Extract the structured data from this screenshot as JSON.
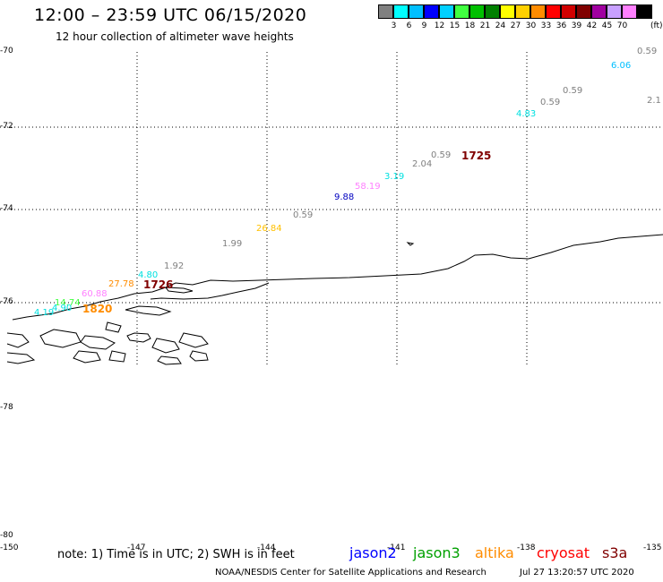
{
  "header": {
    "title": "12:00 – 23:59 UTC 06/15/2020",
    "subtitle": "12 hour collection of altimeter wave heights"
  },
  "color_scale": {
    "unit": "(ft)",
    "swatches": [
      {
        "label": "",
        "color": "#808080"
      },
      {
        "label": "3",
        "color": "#00ffff"
      },
      {
        "label": "6",
        "color": "#00bfff"
      },
      {
        "label": "9",
        "color": "#0000ff"
      },
      {
        "label": "12",
        "color": "#00d0ff"
      },
      {
        "label": "15",
        "color": "#40ff40"
      },
      {
        "label": "18",
        "color": "#00c000"
      },
      {
        "label": "21",
        "color": "#008000"
      },
      {
        "label": "24",
        "color": "#ffff00"
      },
      {
        "label": "27",
        "color": "#ffd000"
      },
      {
        "label": "30",
        "color": "#ff8c00"
      },
      {
        "label": "33",
        "color": "#ff0000"
      },
      {
        "label": "36",
        "color": "#d00000"
      },
      {
        "label": "39",
        "color": "#800000"
      },
      {
        "label": "42",
        "color": "#a000a0"
      },
      {
        "label": "45",
        "color": "#c8a0ff"
      },
      {
        "label": "70",
        "color": "#ff80ff"
      },
      {
        "label": "",
        "color": "#000000"
      }
    ]
  },
  "axes": {
    "latitudes": [
      "-70",
      "-72",
      "-74",
      "-76",
      "-78",
      "-80"
    ],
    "longitudes": [
      "-150",
      "-147",
      "-144",
      "-141",
      "-138",
      "-135"
    ]
  },
  "observations": [
    {
      "value": "0.59",
      "color": "#808080"
    },
    {
      "value": "6.06",
      "color": "#00bfff"
    },
    {
      "value": "0.59",
      "color": "#808080"
    },
    {
      "value": "0.59",
      "color": "#808080"
    },
    {
      "value": "2.1",
      "color": "#808080"
    },
    {
      "value": "4.83",
      "color": "#00e0e0"
    },
    {
      "value": "0.59",
      "color": "#808080"
    },
    {
      "value": "2.04",
      "color": "#808080"
    },
    {
      "value": "1725",
      "color": "#800000",
      "big": true
    },
    {
      "value": "3.19",
      "color": "#00e0e0"
    },
    {
      "value": "58.19",
      "color": "#ff80ff"
    },
    {
      "value": "9.88",
      "color": "#0000c0"
    },
    {
      "value": "0.59",
      "color": "#808080"
    },
    {
      "value": "26.84",
      "color": "#ffc000"
    },
    {
      "value": "1.99",
      "color": "#808080"
    },
    {
      "value": "1.92",
      "color": "#808080"
    },
    {
      "value": "4.80",
      "color": "#00e0e0"
    },
    {
      "value": "27.78",
      "color": "#ff8c00"
    },
    {
      "value": "1726",
      "color": "#800000",
      "big": true
    },
    {
      "value": "60.88",
      "color": "#ff80ff"
    },
    {
      "value": "14.74",
      "color": "#40ff40"
    },
    {
      "value": "4.90",
      "color": "#00e0e0"
    },
    {
      "value": "4.19",
      "color": "#00e0e0"
    },
    {
      "value": "1820",
      "color": "#ff8c00",
      "big": true
    }
  ],
  "footer": {
    "note": "note:  1) Time is in UTC;  2) SWH is in feet",
    "satellites": [
      {
        "name": "jason2",
        "color": "#0000ff"
      },
      {
        "name": "jason3",
        "color": "#00a000"
      },
      {
        "name": "altika",
        "color": "#ff8c00"
      },
      {
        "name": "cryosat",
        "color": "#ff0000"
      },
      {
        "name": "s3a",
        "color": "#800000"
      }
    ],
    "credit": "NOAA/NESDIS Center for Satellite Applications and Research",
    "timestamp": "Jul 27 13:20:57 UTC 2020"
  }
}
